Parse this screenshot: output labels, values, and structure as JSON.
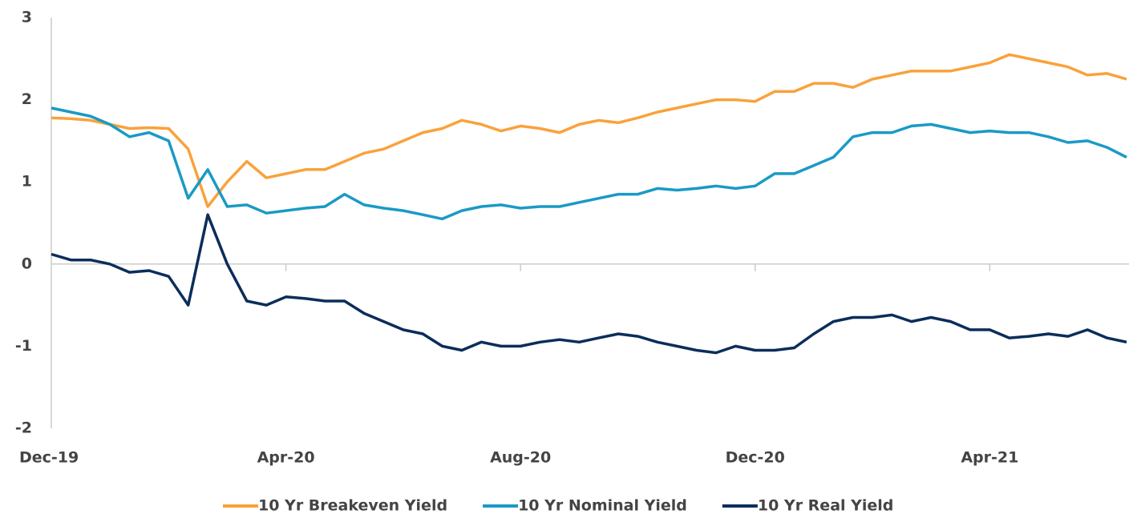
{
  "chart_data": {
    "type": "line",
    "categories": [
      "Dec-19",
      null,
      null,
      null,
      null,
      null,
      null,
      null,
      null,
      null,
      null,
      null,
      "Apr-20",
      null,
      null,
      null,
      null,
      null,
      null,
      null,
      null,
      null,
      null,
      null,
      "Aug-20",
      null,
      null,
      null,
      null,
      null,
      null,
      null,
      null,
      null,
      null,
      null,
      "Dec-20",
      null,
      null,
      null,
      null,
      null,
      null,
      null,
      null,
      null,
      null,
      null,
      "Apr-21",
      null,
      null,
      null,
      null,
      null,
      null,
      null
    ],
    "series": [
      {
        "name": "10 Yr Breakeven Yield",
        "color": "#f9a23b",
        "values": [
          1.78,
          1.77,
          1.75,
          1.7,
          1.65,
          1.66,
          1.65,
          1.4,
          0.7,
          1.0,
          1.25,
          1.05,
          1.1,
          1.15,
          1.15,
          1.25,
          1.35,
          1.4,
          1.5,
          1.6,
          1.65,
          1.75,
          1.7,
          1.62,
          1.68,
          1.65,
          1.6,
          1.7,
          1.75,
          1.72,
          1.78,
          1.85,
          1.9,
          1.95,
          2.0,
          2.0,
          1.98,
          2.1,
          2.1,
          2.2,
          2.2,
          2.15,
          2.25,
          2.3,
          2.35,
          2.35,
          2.35,
          2.4,
          2.45,
          2.55,
          2.5,
          2.45,
          2.4,
          2.3,
          2.32,
          2.25
        ]
      },
      {
        "name": "10 Yr Nominal Yield",
        "color": "#1a9ac6",
        "values": [
          1.9,
          1.85,
          1.8,
          1.7,
          1.55,
          1.6,
          1.5,
          0.8,
          1.15,
          0.7,
          0.72,
          0.62,
          0.65,
          0.68,
          0.7,
          0.85,
          0.72,
          0.68,
          0.65,
          0.6,
          0.55,
          0.65,
          0.7,
          0.72,
          0.68,
          0.7,
          0.7,
          0.75,
          0.8,
          0.85,
          0.85,
          0.92,
          0.9,
          0.92,
          0.95,
          0.92,
          0.95,
          1.1,
          1.1,
          1.2,
          1.3,
          1.55,
          1.6,
          1.6,
          1.68,
          1.7,
          1.65,
          1.6,
          1.62,
          1.6,
          1.6,
          1.55,
          1.48,
          1.5,
          1.42,
          1.3
        ]
      },
      {
        "name": "10 Yr Real Yield",
        "color": "#0b2d5b",
        "values": [
          0.12,
          0.05,
          0.05,
          0.0,
          -0.1,
          -0.08,
          -0.15,
          -0.5,
          0.6,
          0.0,
          -0.45,
          -0.5,
          -0.4,
          -0.42,
          -0.45,
          -0.45,
          -0.6,
          -0.7,
          -0.8,
          -0.85,
          -1.0,
          -1.05,
          -0.95,
          -1.0,
          -1.0,
          -0.95,
          -0.92,
          -0.95,
          -0.9,
          -0.85,
          -0.88,
          -0.95,
          -1.0,
          -1.05,
          -1.08,
          -1.0,
          -1.05,
          -1.05,
          -1.02,
          -0.85,
          -0.7,
          -0.65,
          -0.65,
          -0.62,
          -0.7,
          -0.65,
          -0.7,
          -0.8,
          -0.8,
          -0.9,
          -0.88,
          -0.85,
          -0.88,
          -0.8,
          -0.9,
          -0.95
        ]
      }
    ],
    "ylim": [
      -2,
      3
    ],
    "yticks": [
      -2,
      -1,
      0,
      1,
      2,
      3
    ]
  }
}
